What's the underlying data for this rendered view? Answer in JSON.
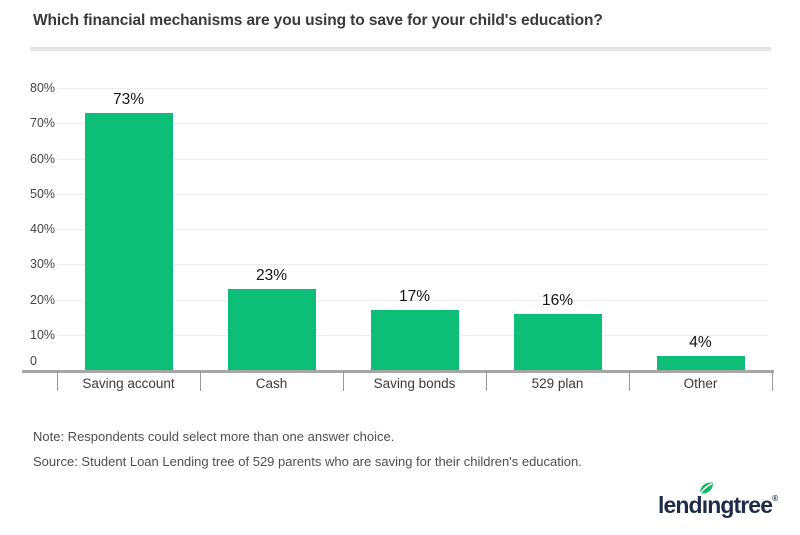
{
  "title": "Which financial mechanisms are you using to save for your child's education?",
  "chart_data": {
    "type": "bar",
    "title": "Which financial mechanisms are you using to save for your child's education?",
    "categories": [
      "Saving account",
      "Cash",
      "Saving bonds",
      "529 plan",
      "Other"
    ],
    "values": [
      73,
      23,
      17,
      16,
      4
    ],
    "value_labels": [
      "73%",
      "23%",
      "17%",
      "16%",
      "4%"
    ],
    "xlabel": "",
    "ylabel": "",
    "ylim": [
      0,
      80
    ],
    "yticks": [
      "80%",
      "70%",
      "60%",
      "50%",
      "40%",
      "30%",
      "20%",
      "10%",
      "0"
    ],
    "grid": true,
    "legend": false,
    "bar_color": "#0dbe78"
  },
  "notes": {
    "note": "Note: Respondents could select more than one answer choice.",
    "source": "Source: Student Loan Lending tree of 529 parents who are saving for their children's education."
  },
  "footer": {
    "logo_name": "lendingtree",
    "logo_pre": "lend",
    "logo_i": "ı",
    "logo_post": "ngtree",
    "registered": "®"
  },
  "colors": {
    "bar": "#0dbe78",
    "gridline": "#ededed",
    "axis": "#a6a6a6",
    "divider": "#e4e4e4",
    "title_text": "#3a3a3a",
    "label_text": "#3b3b3b",
    "note_text": "#4f4f4f",
    "logo_navy": "#1e2b49",
    "leaf_green": "#16b465"
  }
}
